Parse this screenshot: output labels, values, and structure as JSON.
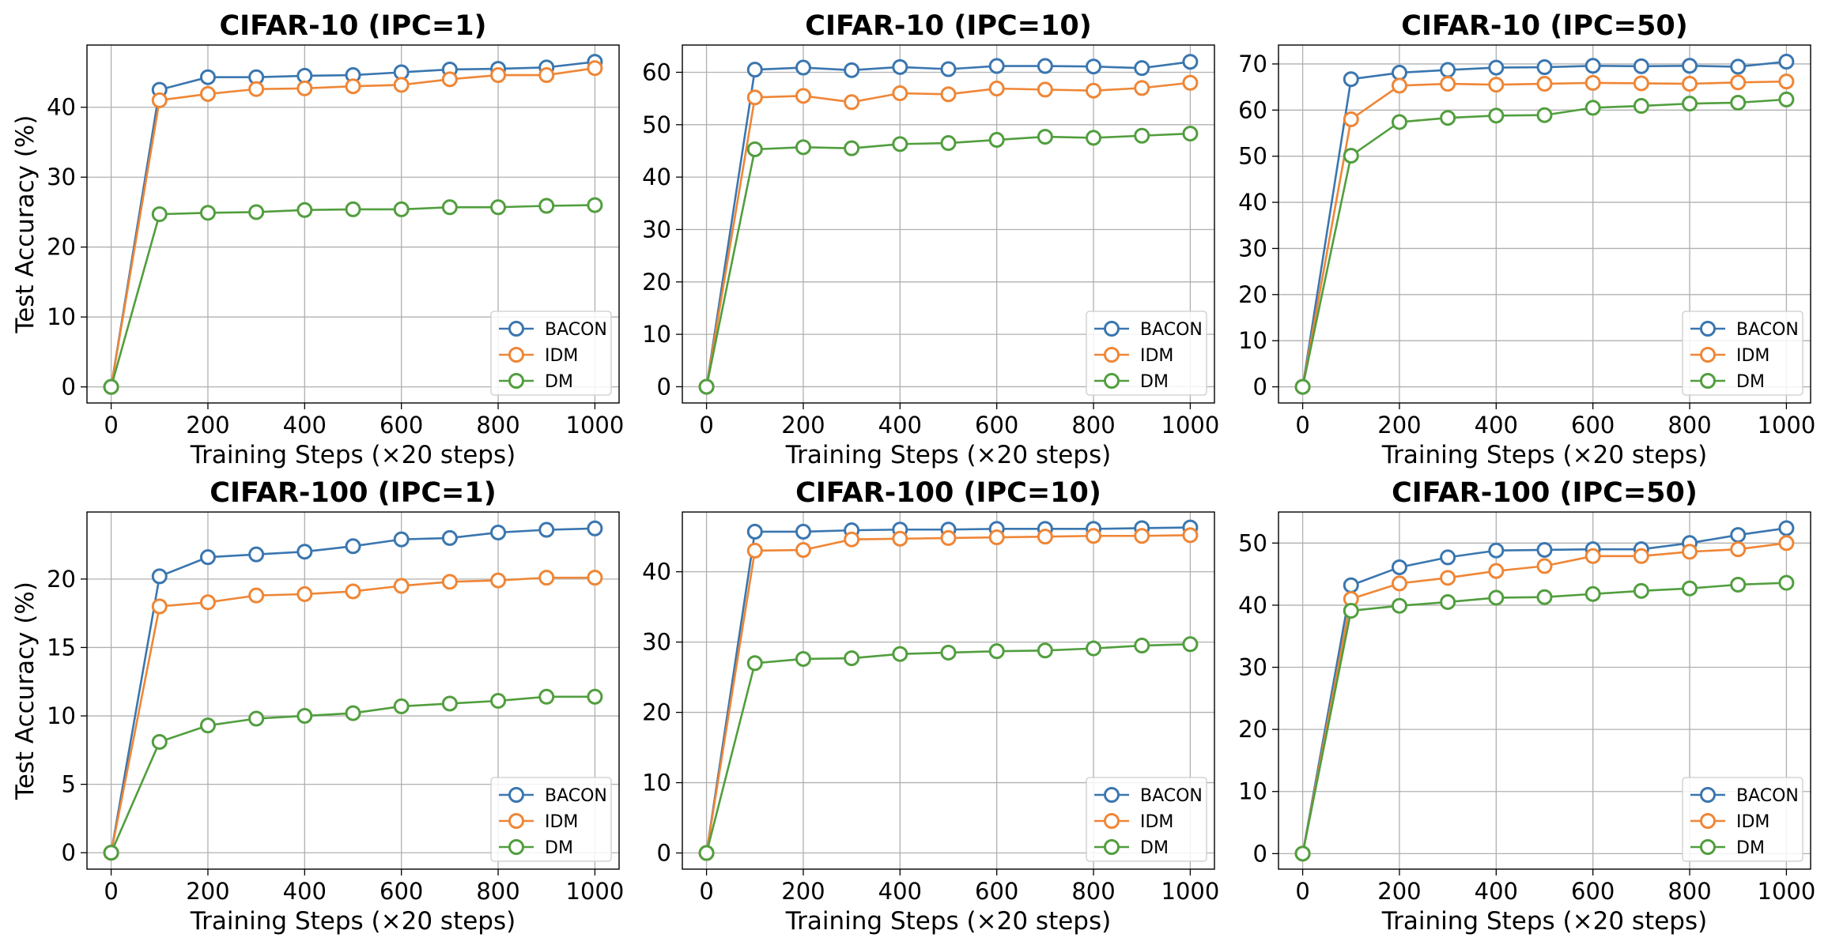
{
  "colors": {
    "BACON": "#3a76af",
    "IDM": "#ef8636",
    "DM": "#519e3e"
  },
  "chart_data": [
    {
      "type": "line",
      "title": "CIFAR-10 (IPC=1)",
      "xlabel": "Training Steps (×20 steps)",
      "ylabel": "Test Accuracy (%)",
      "x": [
        0,
        100,
        200,
        300,
        400,
        500,
        600,
        700,
        800,
        900,
        1000
      ],
      "xticks": [
        0,
        200,
        400,
        600,
        800,
        1000
      ],
      "yticks": [
        0,
        10,
        20,
        30,
        40
      ],
      "xlim": [
        -50,
        1050
      ],
      "ylim": [
        -2.3,
        48.9
      ],
      "grid": true,
      "legend": "lower right",
      "series": [
        {
          "name": "BACON",
          "values": [
            0,
            42.5,
            44.3,
            44.3,
            44.5,
            44.6,
            45.0,
            45.4,
            45.5,
            45.7,
            46.5
          ]
        },
        {
          "name": "IDM",
          "values": [
            0,
            41.0,
            41.9,
            42.6,
            42.7,
            43.0,
            43.2,
            44.0,
            44.6,
            44.6,
            45.6
          ]
        },
        {
          "name": "DM",
          "values": [
            0,
            24.7,
            24.9,
            25.0,
            25.3,
            25.4,
            25.4,
            25.7,
            25.7,
            25.9,
            26.0
          ]
        }
      ]
    },
    {
      "type": "line",
      "title": "CIFAR-10 (IPC=10)",
      "xlabel": "Training Steps (×20 steps)",
      "ylabel": "",
      "x": [
        0,
        100,
        200,
        300,
        400,
        500,
        600,
        700,
        800,
        900,
        1000
      ],
      "xticks": [
        0,
        200,
        400,
        600,
        800,
        1000
      ],
      "yticks": [
        0,
        10,
        20,
        30,
        40,
        50,
        60
      ],
      "xlim": [
        -50,
        1050
      ],
      "ylim": [
        -3.1,
        65.2
      ],
      "grid": true,
      "legend": "lower right",
      "series": [
        {
          "name": "BACON",
          "values": [
            0,
            60.5,
            60.9,
            60.4,
            61.0,
            60.6,
            61.2,
            61.2,
            61.1,
            60.8,
            62.0
          ]
        },
        {
          "name": "IDM",
          "values": [
            0,
            55.2,
            55.5,
            54.3,
            56.0,
            55.8,
            56.9,
            56.7,
            56.5,
            57.0,
            58.0
          ]
        },
        {
          "name": "DM",
          "values": [
            0,
            45.3,
            45.7,
            45.5,
            46.3,
            46.5,
            47.1,
            47.7,
            47.5,
            47.9,
            48.3
          ]
        }
      ]
    },
    {
      "type": "line",
      "title": "CIFAR-10 (IPC=50)",
      "xlabel": "Training Steps (×20 steps)",
      "ylabel": "",
      "x": [
        0,
        100,
        200,
        300,
        400,
        500,
        600,
        700,
        800,
        900,
        1000
      ],
      "xticks": [
        0,
        200,
        400,
        600,
        800,
        1000
      ],
      "yticks": [
        0,
        10,
        20,
        30,
        40,
        50,
        60,
        70
      ],
      "xlim": [
        -50,
        1050
      ],
      "ylim": [
        -3.5,
        74.1
      ],
      "grid": true,
      "legend": "lower right",
      "series": [
        {
          "name": "BACON",
          "values": [
            0,
            66.7,
            68.1,
            68.7,
            69.2,
            69.3,
            69.6,
            69.5,
            69.6,
            69.4,
            70.5
          ]
        },
        {
          "name": "IDM",
          "values": [
            0,
            58.0,
            65.3,
            65.7,
            65.5,
            65.7,
            65.9,
            65.8,
            65.7,
            66.0,
            66.2
          ]
        },
        {
          "name": "DM",
          "values": [
            0,
            50.1,
            57.4,
            58.3,
            58.8,
            58.9,
            60.5,
            60.9,
            61.4,
            61.6,
            62.3
          ]
        }
      ]
    },
    {
      "type": "line",
      "title": "CIFAR-100 (IPC=1)",
      "xlabel": "Training Steps (×20 steps)",
      "ylabel": "Test Accuracy (%)",
      "x": [
        0,
        100,
        200,
        300,
        400,
        500,
        600,
        700,
        800,
        900,
        1000
      ],
      "xticks": [
        0,
        200,
        400,
        600,
        800,
        1000
      ],
      "yticks": [
        0,
        5,
        10,
        15,
        20
      ],
      "xlim": [
        -50,
        1050
      ],
      "ylim": [
        -1.2,
        24.9
      ],
      "grid": true,
      "legend": "lower right",
      "series": [
        {
          "name": "BACON",
          "values": [
            0,
            20.2,
            21.6,
            21.8,
            22.0,
            22.4,
            22.9,
            23.0,
            23.4,
            23.6,
            23.7
          ]
        },
        {
          "name": "IDM",
          "values": [
            0,
            18.0,
            18.3,
            18.8,
            18.9,
            19.1,
            19.5,
            19.8,
            19.9,
            20.1,
            20.1
          ]
        },
        {
          "name": "DM",
          "values": [
            0,
            8.1,
            9.3,
            9.8,
            10.0,
            10.2,
            10.7,
            10.9,
            11.1,
            11.4,
            11.4
          ]
        }
      ]
    },
    {
      "type": "line",
      "title": "CIFAR-100 (IPC=10)",
      "xlabel": "Training Steps (×20 steps)",
      "ylabel": "",
      "x": [
        0,
        100,
        200,
        300,
        400,
        500,
        600,
        700,
        800,
        900,
        1000
      ],
      "xticks": [
        0,
        200,
        400,
        600,
        800,
        1000
      ],
      "yticks": [
        0,
        10,
        20,
        30,
        40
      ],
      "xlim": [
        -50,
        1050
      ],
      "ylim": [
        -2.3,
        48.5
      ],
      "grid": true,
      "legend": "lower right",
      "series": [
        {
          "name": "BACON",
          "values": [
            0,
            45.7,
            45.7,
            45.9,
            46.0,
            46.0,
            46.1,
            46.1,
            46.1,
            46.2,
            46.3
          ]
        },
        {
          "name": "IDM",
          "values": [
            0,
            43.0,
            43.1,
            44.6,
            44.7,
            44.8,
            44.9,
            45.0,
            45.1,
            45.1,
            45.2
          ]
        },
        {
          "name": "DM",
          "values": [
            0,
            27.0,
            27.6,
            27.7,
            28.3,
            28.5,
            28.7,
            28.8,
            29.1,
            29.5,
            29.7
          ]
        }
      ]
    },
    {
      "type": "line",
      "title": "CIFAR-100 (IPC=50)",
      "xlabel": "Training Steps (×20 steps)",
      "ylabel": "",
      "x": [
        0,
        100,
        200,
        300,
        400,
        500,
        600,
        700,
        800,
        900,
        1000
      ],
      "xticks": [
        0,
        200,
        400,
        600,
        800,
        1000
      ],
      "yticks": [
        0,
        10,
        20,
        30,
        40,
        50
      ],
      "xlim": [
        -50,
        1050
      ],
      "ylim": [
        -2.5,
        55.0
      ],
      "grid": true,
      "legend": "lower right",
      "series": [
        {
          "name": "BACON",
          "values": [
            0,
            43.2,
            46.1,
            47.7,
            48.8,
            48.9,
            49.0,
            49.0,
            50.0,
            51.3,
            52.4
          ]
        },
        {
          "name": "IDM",
          "values": [
            0,
            41.0,
            43.5,
            44.4,
            45.5,
            46.3,
            47.9,
            47.9,
            48.6,
            49.0,
            50.0
          ]
        },
        {
          "name": "DM",
          "values": [
            0,
            39.1,
            39.9,
            40.5,
            41.2,
            41.3,
            41.8,
            42.3,
            42.7,
            43.3,
            43.6
          ]
        }
      ]
    }
  ]
}
